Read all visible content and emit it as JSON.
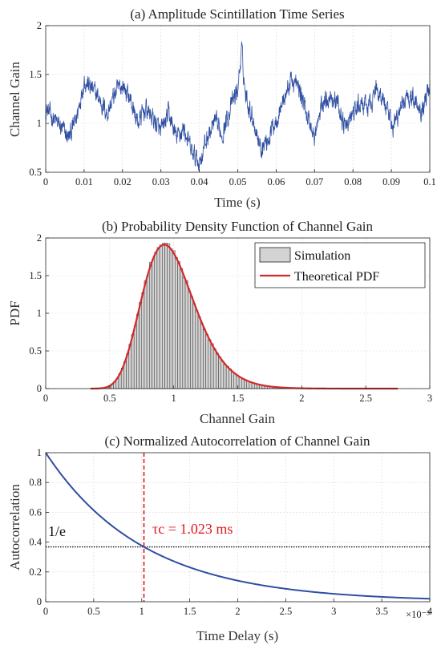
{
  "chart_data": [
    {
      "type": "line",
      "title": "(a) Amplitude Scintillation Time Series",
      "xlabel": "Time (s)",
      "ylabel": "Channel Gain",
      "xlim": [
        0,
        0.1
      ],
      "ylim": [
        0.5,
        2
      ],
      "xticks": [
        "0",
        "0.01",
        "0.02",
        "0.03",
        "0.04",
        "0.05",
        "0.06",
        "0.07",
        "0.08",
        "0.09",
        "0.1"
      ],
      "yticks": [
        "0.5",
        "1",
        "1.5",
        "2"
      ],
      "grid": true,
      "color": "#2f4fa2",
      "series": [
        {
          "x": [
            0,
            0.002,
            0.004,
            0.006,
            0.008,
            0.01,
            0.012,
            0.014,
            0.016,
            0.018,
            0.02,
            0.022,
            0.024,
            0.026,
            0.028,
            0.03,
            0.032,
            0.034,
            0.036,
            0.038,
            0.04,
            0.042,
            0.044,
            0.046,
            0.048,
            0.05,
            0.051,
            0.052,
            0.054,
            0.056,
            0.058,
            0.06,
            0.062,
            0.064,
            0.066,
            0.068,
            0.07,
            0.072,
            0.074,
            0.076,
            0.078,
            0.08,
            0.082,
            0.084,
            0.086,
            0.088,
            0.09,
            0.092,
            0.094,
            0.096,
            0.098,
            0.1
          ],
          "values": [
            1.15,
            1.05,
            0.95,
            0.85,
            1.05,
            1.45,
            1.35,
            1.25,
            1.1,
            1.3,
            1.4,
            1.25,
            1.0,
            1.15,
            1.05,
            0.9,
            1.1,
            0.85,
            0.95,
            0.7,
            0.6,
            0.85,
            1.0,
            0.9,
            1.15,
            1.35,
            1.75,
            1.3,
            1.05,
            0.75,
            0.85,
            1.05,
            1.25,
            1.45,
            1.35,
            1.1,
            0.85,
            1.2,
            1.3,
            1.2,
            0.95,
            1.1,
            1.2,
            1.15,
            1.35,
            1.25,
            0.95,
            1.1,
            1.3,
            1.25,
            1.15,
            1.4
          ]
        }
      ]
    },
    {
      "type": "bar",
      "title": "(b) Probability Density Function of Channel Gain",
      "xlabel": "Channel Gain",
      "ylabel": "PDF",
      "xlim": [
        0,
        3
      ],
      "ylim": [
        0,
        2
      ],
      "xticks": [
        "0",
        "0.5",
        "1",
        "1.5",
        "2",
        "2.5",
        "3"
      ],
      "yticks": [
        "0",
        "0.5",
        "1",
        "1.5",
        "2"
      ],
      "grid": true,
      "legend_position": "top-right",
      "series": [
        {
          "name": "Simulation",
          "kind": "histogram",
          "color": "#d3d3d3",
          "bins": [
            0.35,
            2.75
          ],
          "bin_width": 0.02
        },
        {
          "name": "Theoretical PDF",
          "kind": "lognormal",
          "color": "#d62728",
          "mu": -0.028,
          "sigma": 0.22,
          "x_range": [
            0.35,
            2.75
          ]
        }
      ]
    },
    {
      "type": "line",
      "title": "(c) Normalized Autocorrelation of Channel Gain",
      "xlabel": "Time Delay (s)",
      "ylabel": "Autocorrelation",
      "x_multiplier": "×10⁻³",
      "xlim": [
        0,
        4
      ],
      "ylim": [
        0,
        1
      ],
      "xticks": [
        "0",
        "0.5",
        "1",
        "1.5",
        "2",
        "2.5",
        "3",
        "3.5",
        "4"
      ],
      "yticks": [
        "0",
        "0.2",
        "0.4",
        "0.6",
        "0.8",
        "1"
      ],
      "grid": true,
      "tau_c": 1.023,
      "threshold": 0.3679,
      "color": "#2f4fa2",
      "threshold_label": "1/e",
      "annotation": "τc = 1.023 ms",
      "annotation_color": "#e0181e"
    }
  ]
}
